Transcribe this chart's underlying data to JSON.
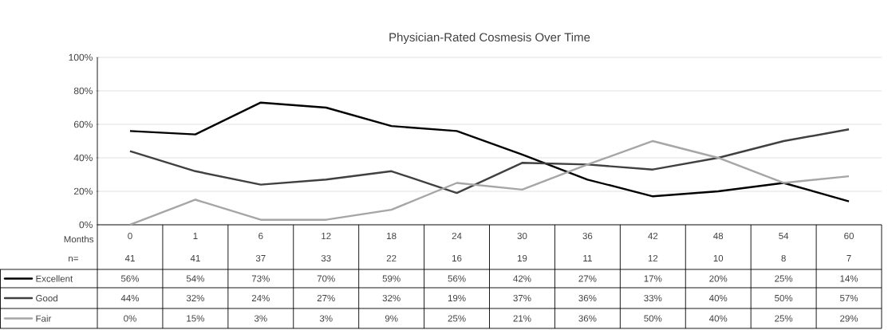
{
  "chart_data": {
    "type": "line",
    "title": "Physician-Rated Cosmesis Over Time",
    "xlabel": "Months",
    "categories": [
      "0",
      "1",
      "6",
      "12",
      "18",
      "24",
      "30",
      "36",
      "42",
      "48",
      "54",
      "60"
    ],
    "series": [
      {
        "name": "Excellent",
        "color": "#000000",
        "values": [
          56,
          54,
          73,
          70,
          59,
          56,
          42,
          27,
          17,
          20,
          25,
          14
        ],
        "value_labels": [
          "56%",
          "54%",
          "73%",
          "70%",
          "59%",
          "56%",
          "42%",
          "27%",
          "17%",
          "20%",
          "25%",
          "14%"
        ]
      },
      {
        "name": "Good",
        "color": "#404040",
        "values": [
          44,
          32,
          24,
          27,
          32,
          19,
          37,
          36,
          33,
          40,
          50,
          57
        ],
        "value_labels": [
          "44%",
          "32%",
          "24%",
          "27%",
          "32%",
          "19%",
          "37%",
          "36%",
          "33%",
          "40%",
          "50%",
          "57%"
        ]
      },
      {
        "name": "Fair",
        "color": "#a6a6a6",
        "values": [
          0,
          15,
          3,
          3,
          9,
          25,
          21,
          36,
          50,
          40,
          25,
          29
        ],
        "value_labels": [
          "0%",
          "15%",
          "3%",
          "3%",
          "9%",
          "25%",
          "21%",
          "36%",
          "50%",
          "40%",
          "25%",
          "29%"
        ]
      }
    ],
    "ylim": [
      0,
      100
    ],
    "yticks": [
      {
        "value": 0,
        "label": "0%"
      },
      {
        "value": 20,
        "label": "20%"
      },
      {
        "value": 40,
        "label": "40%"
      },
      {
        "value": 60,
        "label": "60%"
      },
      {
        "value": 80,
        "label": "80%"
      },
      {
        "value": 100,
        "label": "100%"
      }
    ],
    "grid": "y",
    "legend": "bottom left",
    "annotations": [
      "n=",
      "41",
      "41",
      "37",
      "33",
      "22",
      "16",
      "19",
      "11",
      "12",
      "10",
      "8",
      "7"
    ]
  }
}
